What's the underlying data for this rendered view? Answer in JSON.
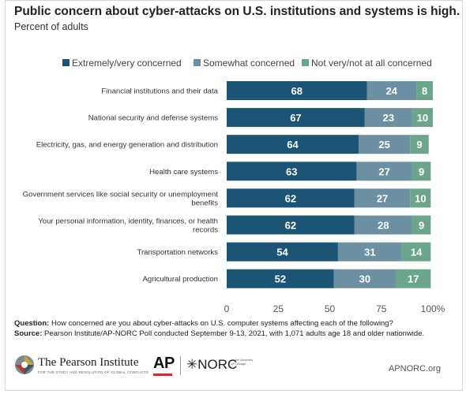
{
  "title": "Public concern about cyber-attacks on U.S. institutions and systems is high.",
  "subtitle": "Percent of adults",
  "colors": {
    "extremely": "#1b5475",
    "somewhat": "#6d8fa2",
    "not_very": "#6aa58c"
  },
  "chart_data": {
    "type": "bar",
    "orientation": "horizontal",
    "stacked": true,
    "legend_position": "top",
    "categories": [
      "Financial institutions and their data",
      "National security and defense systems",
      "Electricity, gas, and energy generation and distribution",
      "Health care systems",
      "Government services like social security or unemployment benefits",
      "Your personal information, identity, finances, or health records",
      "Transportation networks",
      "Agricultural production"
    ],
    "series": [
      {
        "name": "Extremely/very concerned",
        "color": "#1b5475",
        "values": [
          68,
          67,
          64,
          63,
          62,
          62,
          54,
          52
        ]
      },
      {
        "name": "Somewhat concerned",
        "color": "#6d8fa2",
        "values": [
          24,
          23,
          25,
          27,
          27,
          28,
          31,
          30
        ]
      },
      {
        "name": "Not very/not at all concerned",
        "color": "#6aa58c",
        "values": [
          8,
          10,
          9,
          9,
          10,
          9,
          14,
          17
        ]
      }
    ],
    "xlim": [
      0,
      100
    ],
    "xticks": [
      "0",
      "25",
      "50",
      "75",
      "100%"
    ],
    "grid": false
  },
  "footer": {
    "question_label": "Question:",
    "question_text": "How concerned are you about cyber-attacks on U.S. computer systems affecting each of the following?",
    "source_label": "Source:",
    "source_text": "Pearson Institute/AP-NORC Poll conducted September 9-13, 2021, with 1,071 adults age 18 and older nationwide."
  },
  "logos": {
    "pearson_name": "The Pearson Institute",
    "pearson_tagline": "FOR THE STUDY AND RESOLUTION OF GLOBAL CONFLICTS",
    "ap": "AP",
    "norc": "✳NORC",
    "norc_sub": "at the University of Chicago",
    "site": "APNORC.org"
  }
}
